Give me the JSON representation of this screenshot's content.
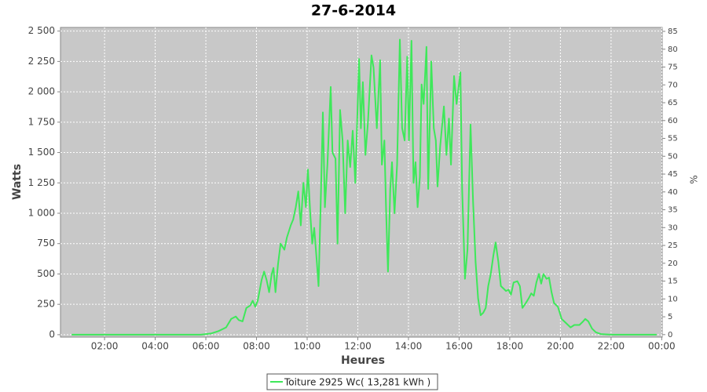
{
  "chart_data": {
    "type": "line",
    "title": "27-6-2014",
    "x_label": "Heures",
    "y_label": "Watts",
    "y2_label": "%",
    "x": [
      0.7,
      5.8,
      6.2,
      6.5,
      6.8,
      7.0,
      7.18,
      7.3,
      7.45,
      7.6,
      7.75,
      7.85,
      7.95,
      8.05,
      8.2,
      8.3,
      8.4,
      8.5,
      8.6,
      8.67,
      8.75,
      8.85,
      8.95,
      9.1,
      9.2,
      9.35,
      9.45,
      9.55,
      9.65,
      9.75,
      9.85,
      9.95,
      10.03,
      10.12,
      10.2,
      10.28,
      10.38,
      10.45,
      10.55,
      10.62,
      10.7,
      10.8,
      10.93,
      11.0,
      11.12,
      11.2,
      11.3,
      11.4,
      11.5,
      11.6,
      11.7,
      11.8,
      11.9,
      12.05,
      12.12,
      12.2,
      12.3,
      12.4,
      12.54,
      12.62,
      12.75,
      12.88,
      12.95,
      13.05,
      13.12,
      13.19,
      13.28,
      13.35,
      13.45,
      13.55,
      13.66,
      13.75,
      13.85,
      13.95,
      14.02,
      14.12,
      14.2,
      14.28,
      14.36,
      14.45,
      14.52,
      14.6,
      14.71,
      14.78,
      14.9,
      15.0,
      15.08,
      15.15,
      15.25,
      15.4,
      15.5,
      15.6,
      15.68,
      15.8,
      15.9,
      16.05,
      16.12,
      16.23,
      16.33,
      16.45,
      16.55,
      16.65,
      16.75,
      16.85,
      16.95,
      17.05,
      17.15,
      17.25,
      17.35,
      17.44,
      17.55,
      17.65,
      17.75,
      17.85,
      17.95,
      18.05,
      18.15,
      18.3,
      18.4,
      18.5,
      18.6,
      18.75,
      18.85,
      18.95,
      19.05,
      19.15,
      19.24,
      19.33,
      19.45,
      19.55,
      19.65,
      19.75,
      19.9,
      20.05,
      20.2,
      20.4,
      20.55,
      20.75,
      20.9,
      20.98,
      21.1,
      21.25,
      21.4,
      21.6,
      22.0,
      23.8
    ],
    "series": [
      {
        "name": "Toiture 2925 Wc( 13,281 kWh )",
        "color": "#3ee85a",
        "values": [
          0,
          0,
          10,
          30,
          60,
          130,
          150,
          120,
          110,
          220,
          240,
          280,
          230,
          280,
          450,
          520,
          450,
          350,
          500,
          550,
          350,
          580,
          750,
          700,
          800,
          900,
          950,
          1050,
          1180,
          900,
          1250,
          1050,
          1360,
          1000,
          750,
          880,
          600,
          400,
          1200,
          1830,
          1050,
          1400,
          2040,
          1500,
          1450,
          750,
          1850,
          1600,
          1000,
          1600,
          1380,
          1680,
          1250,
          2270,
          1700,
          2080,
          1480,
          1750,
          2300,
          2200,
          1700,
          2260,
          1400,
          1600,
          1000,
          520,
          1200,
          1420,
          1000,
          1400,
          2430,
          1700,
          1600,
          2290,
          1600,
          2420,
          1250,
          1420,
          1050,
          1300,
          2060,
          1900,
          2370,
          1200,
          2250,
          1700,
          1600,
          1220,
          1550,
          1880,
          1480,
          1780,
          1400,
          2130,
          1900,
          2160,
          1200,
          460,
          700,
          1730,
          1100,
          600,
          300,
          160,
          180,
          220,
          400,
          500,
          650,
          760,
          600,
          400,
          380,
          360,
          370,
          330,
          430,
          440,
          400,
          220,
          250,
          300,
          340,
          320,
          430,
          500,
          420,
          500,
          460,
          470,
          350,
          260,
          230,
          130,
          100,
          60,
          80,
          80,
          110,
          130,
          110,
          50,
          20,
          5,
          0,
          0
        ]
      }
    ],
    "xlim": [
      0.26,
      24.02
    ],
    "ylim": [
      -20,
      2530
    ],
    "y2lim": [
      -0.7,
      86.1
    ],
    "xticks": [
      {
        "value": 2,
        "label": "02:00"
      },
      {
        "value": 4,
        "label": "04:00"
      },
      {
        "value": 6,
        "label": "06:00"
      },
      {
        "value": 8,
        "label": "08:00"
      },
      {
        "value": 10,
        "label": "10:00"
      },
      {
        "value": 12,
        "label": "12:00"
      },
      {
        "value": 14,
        "label": "14:00"
      },
      {
        "value": 16,
        "label": "16:00"
      },
      {
        "value": 18,
        "label": "18:00"
      },
      {
        "value": 20,
        "label": "20:00"
      },
      {
        "value": 22,
        "label": "22:00"
      },
      {
        "value": 24,
        "label": "00:00"
      }
    ],
    "yticks": [
      0,
      250,
      500,
      750,
      {
        "value": 1000,
        "label": "1 000"
      },
      {
        "value": 1250,
        "label": "1 250"
      },
      {
        "value": 1500,
        "label": "1 500"
      },
      {
        "value": 1750,
        "label": "1 750"
      },
      {
        "value": 2000,
        "label": "2 000"
      },
      {
        "value": 2250,
        "label": "2 250"
      },
      {
        "value": 2500,
        "label": "2 500"
      }
    ],
    "y2ticks": [
      0,
      5,
      10,
      15,
      20,
      25,
      30,
      35,
      40,
      45,
      50,
      55,
      60,
      65,
      70,
      75,
      80,
      85
    ],
    "grid": true
  }
}
